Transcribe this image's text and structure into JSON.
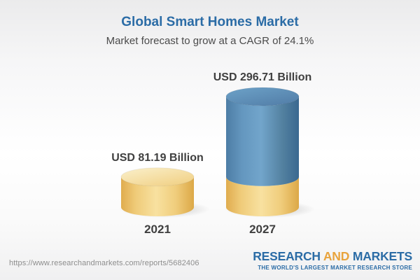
{
  "header": {
    "title": "Global Smart Homes Market",
    "subtitle": "Market forecast to grow at a CAGR of 24.1%"
  },
  "chart_data": {
    "type": "bar",
    "variant": "3d-cylinder-infographic",
    "title": "Global Smart Homes Market",
    "subtitle": "Market forecast to grow at a CAGR of 24.1%",
    "unit": "USD Billion",
    "cagr_pct": 24.1,
    "categories": [
      "2021",
      "2027"
    ],
    "values": [
      81.19,
      296.71
    ],
    "ylim": [
      0,
      296.71
    ],
    "grid": false,
    "axes_shown": false,
    "legend": false,
    "bars": [
      {
        "category": "2021",
        "label": "USD 81.19 Billion",
        "value": 81.19,
        "segments": [
          {
            "color_key": "gold",
            "value": 81.19
          }
        ]
      },
      {
        "category": "2027",
        "label": "USD 296.71 Billion",
        "value": 296.71,
        "segments": [
          {
            "color_key": "gold",
            "value": 81.19
          },
          {
            "color_key": "blue",
            "value": 215.52
          }
        ]
      }
    ]
  },
  "footer": {
    "url": "https://www.researchandmarkets.com/reports/5682406",
    "logo": {
      "word1": "RESEARCH",
      "word2": "AND",
      "word3": "MARKETS",
      "tagline": "THE WORLD'S LARGEST MARKET RESEARCH STORE"
    }
  },
  "colors": {
    "title_blue": "#2B6CA6",
    "subtitle_gray": "#4B4B4B",
    "label_gray": "#3F3F3F",
    "gold": "#F2CE7E",
    "blue": "#5288B0",
    "url_gray": "#8D8D8D",
    "logo_blue": "#2B6CA6",
    "logo_gold": "#E8A33C"
  }
}
